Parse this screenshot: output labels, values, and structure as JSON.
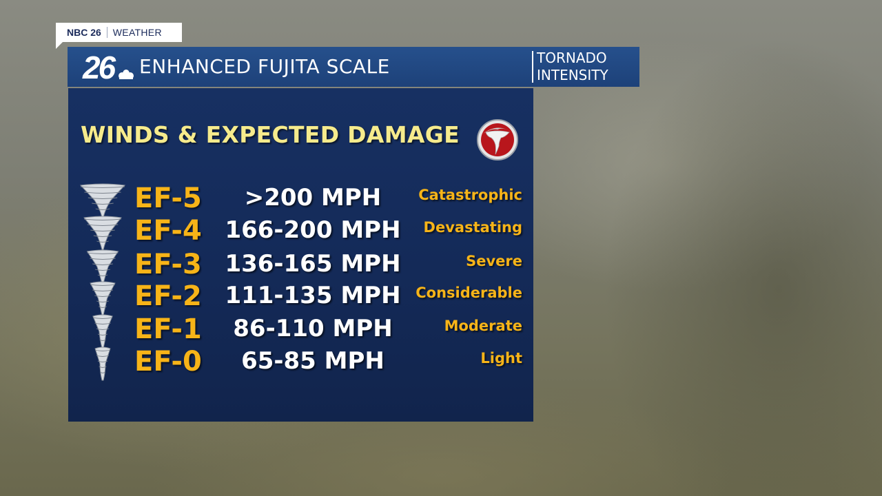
{
  "brand_tag": {
    "station": "NBC 26",
    "section": "WEATHER"
  },
  "header": {
    "logo_number": "26",
    "title": "ENHANCED FUJITA SCALE",
    "subtitle_line1": "TORNADO",
    "subtitle_line2": "INTENSITY"
  },
  "panel": {
    "title": "WINDS & EXPECTED DAMAGE",
    "rows": [
      {
        "rating": "EF-5",
        "wind": ">200 MPH",
        "damage": "Catastrophic",
        "icon": "tornado-icon"
      },
      {
        "rating": "EF-4",
        "wind": "166-200 MPH",
        "damage": "Devastating",
        "icon": "tornado-icon"
      },
      {
        "rating": "EF-3",
        "wind": "136-165 MPH",
        "damage": "Severe",
        "icon": "tornado-icon"
      },
      {
        "rating": "EF-2",
        "wind": "111-135 MPH",
        "damage": "Considerable",
        "icon": "tornado-icon"
      },
      {
        "rating": "EF-1",
        "wind": "86-110 MPH",
        "damage": "Moderate",
        "icon": "tornado-icon"
      },
      {
        "rating": "EF-0",
        "wind": "65-85 MPH",
        "damage": "Light",
        "icon": "tornado-icon"
      }
    ]
  },
  "colors": {
    "panel_bg": "#152c5b",
    "header_bg": "#22497f",
    "rating_orange": "#f7b418",
    "title_yellow": "#f6eb8c",
    "badge_red": "#b8161c"
  }
}
